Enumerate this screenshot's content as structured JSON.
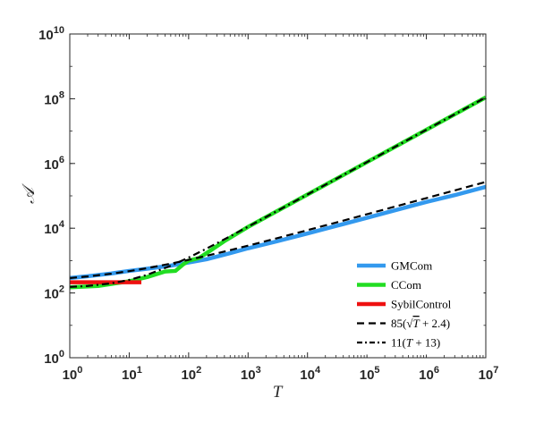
{
  "chart_data": {
    "type": "line",
    "xscale": "log",
    "yscale": "log",
    "xlim": [
      1,
      10000000
    ],
    "ylim": [
      1,
      10000000000
    ],
    "xlabel": "T",
    "ylabel": "𝒜",
    "x_ticks": [
      {
        "base": "10",
        "exp": "0"
      },
      {
        "base": "10",
        "exp": "1"
      },
      {
        "base": "10",
        "exp": "2"
      },
      {
        "base": "10",
        "exp": "3"
      },
      {
        "base": "10",
        "exp": "4"
      },
      {
        "base": "10",
        "exp": "5"
      },
      {
        "base": "10",
        "exp": "6"
      },
      {
        "base": "10",
        "exp": "7"
      }
    ],
    "y_ticks": [
      {
        "base": "10",
        "exp": "0"
      },
      {
        "base": "10",
        "exp": "2"
      },
      {
        "base": "10",
        "exp": "4"
      },
      {
        "base": "10",
        "exp": "6"
      },
      {
        "base": "10",
        "exp": "8"
      },
      {
        "base": "10",
        "exp": "10"
      }
    ],
    "grid": false,
    "legend_position": "bottom-right",
    "series": [
      {
        "name": "GMCom",
        "color": "#3399ee",
        "style": "solid",
        "x": [
          1,
          2,
          5,
          10,
          20,
          50,
          100,
          200,
          500,
          1000,
          3000,
          10000,
          30000,
          100000,
          300000,
          1000000,
          3000000,
          10000000
        ],
        "y": [
          290,
          330,
          400,
          480,
          560,
          700,
          870,
          1100,
          1700,
          2400,
          3900,
          6900,
          11700,
          21000,
          36000,
          65000,
          105000,
          190000
        ]
      },
      {
        "name": "CCom",
        "color": "#22dd22",
        "style": "solid",
        "x": [
          1,
          3,
          10,
          20,
          40,
          60,
          80,
          100,
          150,
          200,
          400,
          1000,
          10000,
          100000,
          1000000,
          10000000
        ],
        "y": [
          150,
          165,
          230,
          310,
          460,
          480,
          750,
          1000,
          1200,
          1700,
          4000,
          11000,
          110000,
          1100000,
          11000000,
          110000000
        ]
      },
      {
        "name": "SybilControl",
        "color": "#ee1111",
        "style": "solid",
        "x": [
          1,
          16
        ],
        "y": [
          215,
          215
        ]
      },
      {
        "name": "85(√T + 2.4)",
        "color": "#000000",
        "style": "dashed",
        "x": [
          1,
          2,
          5,
          10,
          20,
          50,
          100,
          200,
          500,
          1000,
          3000,
          10000,
          30000,
          100000,
          300000,
          1000000,
          3000000,
          10000000
        ],
        "y": [
          289,
          324,
          394,
          473,
          584,
          805,
          1054,
          1406,
          2105,
          2892,
          4860,
          8704,
          14926,
          27083,
          46760,
          85204,
          147427,
          269000
        ]
      },
      {
        "name": "11(T + 13)",
        "color": "#000000",
        "style": "dashdot",
        "x": [
          1,
          2,
          5,
          10,
          20,
          50,
          100,
          200,
          500,
          1000,
          3000,
          10000,
          100000,
          1000000,
          10000000
        ],
        "y": [
          154,
          165,
          198,
          253,
          363,
          693,
          1243,
          2343,
          5643,
          11143,
          33143,
          110143,
          1100143,
          11000143,
          110000143
        ]
      }
    ],
    "legend": {
      "entries": [
        {
          "label": "GMCom"
        },
        {
          "label": "CCom"
        },
        {
          "label": "SybilControl"
        },
        {
          "prefix": "85(",
          "radical": "√",
          "radicand": "T",
          "suffix": " + 2.4)"
        },
        {
          "prefix": "11(",
          "var": "T",
          "suffix": " + 13)"
        }
      ]
    }
  }
}
